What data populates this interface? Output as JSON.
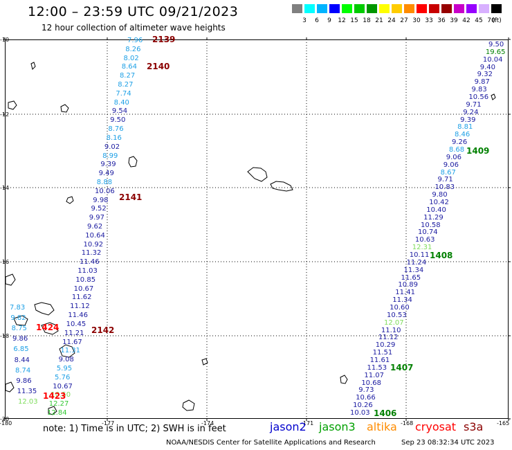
{
  "title": "12:00 – 23:59 UTC 09/21/2023",
  "subtitle": "12 hour collection of altimeter wave heights",
  "colorbar": {
    "unit_label": "(ft)",
    "labels": [
      "3",
      "6",
      "9",
      "12",
      "15",
      "18",
      "21",
      "24",
      "27",
      "30",
      "33",
      "36",
      "39",
      "42",
      "45",
      "70"
    ],
    "colors": [
      "#808080",
      "#00ffff",
      "#00b4ff",
      "#0000ff",
      "#00ff00",
      "#00cc00",
      "#009600",
      "#ffff00",
      "#ffcc00",
      "#ff8c00",
      "#ff0000",
      "#c80000",
      "#960000",
      "#c800c8",
      "#9600ff",
      "#d8b0ff",
      "#000000"
    ]
  },
  "axes": {
    "y_ticks": [
      "-10",
      "-12",
      "-14",
      "-16",
      "-18",
      "-20"
    ],
    "x_ticks": [
      "-180",
      "-177",
      "-174",
      "-171",
      "-168",
      "-165"
    ]
  },
  "passes": [
    {
      "label": "2139",
      "color": "#8b0000"
    },
    {
      "label": "2140",
      "color": "#8b0000"
    },
    {
      "label": "2141",
      "color": "#8b0000"
    },
    {
      "label": "2142",
      "color": "#8b0000"
    },
    {
      "label": "1409",
      "color": "#008000"
    },
    {
      "label": "1408",
      "color": "#008000"
    },
    {
      "label": "1407",
      "color": "#008000"
    },
    {
      "label": "1406",
      "color": "#008000"
    },
    {
      "label": "1424",
      "color": "#ff0000"
    },
    {
      "label": "1423",
      "color": "#ff0000"
    }
  ],
  "track_west": [
    {
      "v": "7.96",
      "c": "#1ea0e6"
    },
    {
      "v": "8.26",
      "c": "#1ea0e6"
    },
    {
      "v": "8.02",
      "c": "#1ea0e6"
    },
    {
      "v": "8.64",
      "c": "#1ea0e6"
    },
    {
      "v": "8.27",
      "c": "#1ea0e6"
    },
    {
      "v": "8.27",
      "c": "#1ea0e6"
    },
    {
      "v": "7.74",
      "c": "#1ea0e6"
    },
    {
      "v": "8.40",
      "c": "#1ea0e6"
    },
    {
      "v": "9.54",
      "c": "#1a1aa0"
    },
    {
      "v": "9.50",
      "c": "#1a1aa0"
    },
    {
      "v": "8.76",
      "c": "#1ea0e6"
    },
    {
      "v": "8.16",
      "c": "#1ea0e6"
    },
    {
      "v": "9.02",
      "c": "#1a1aa0"
    },
    {
      "v": "8.99",
      "c": "#1ea0e6"
    },
    {
      "v": "9.39",
      "c": "#1a1aa0"
    },
    {
      "v": "9.49",
      "c": "#1a1aa0"
    },
    {
      "v": "8.88",
      "c": "#1ea0e6"
    },
    {
      "v": "10.06",
      "c": "#1a1aa0"
    },
    {
      "v": "9.98",
      "c": "#1a1aa0"
    },
    {
      "v": "9.52",
      "c": "#1a1aa0"
    },
    {
      "v": "9.97",
      "c": "#1a1aa0"
    },
    {
      "v": "9.62",
      "c": "#1a1aa0"
    },
    {
      "v": "10.64",
      "c": "#1a1aa0"
    },
    {
      "v": "10.92",
      "c": "#1a1aa0"
    },
    {
      "v": "11.32",
      "c": "#1a1aa0"
    },
    {
      "v": "11.46",
      "c": "#1a1aa0"
    },
    {
      "v": "11.03",
      "c": "#1a1aa0"
    },
    {
      "v": "10.85",
      "c": "#1a1aa0"
    },
    {
      "v": "10.67",
      "c": "#1a1aa0"
    },
    {
      "v": "11.62",
      "c": "#1a1aa0"
    },
    {
      "v": "11.12",
      "c": "#1a1aa0"
    },
    {
      "v": "11.46",
      "c": "#1a1aa0"
    },
    {
      "v": "10.45",
      "c": "#1a1aa0"
    },
    {
      "v": "11.21",
      "c": "#1a1aa0"
    },
    {
      "v": "11.67",
      "c": "#1a1aa0"
    },
    {
      "v": "11.31",
      "c": "#1ea0e6"
    },
    {
      "v": "9.08",
      "c": "#1a1aa0"
    },
    {
      "v": "5.95",
      "c": "#1ea0e6"
    },
    {
      "v": "5.76",
      "c": "#1ea0e6"
    },
    {
      "v": "10.67",
      "c": "#1a1aa0"
    },
    {
      "v": "10.50",
      "c": "#7ddc5a"
    },
    {
      "v": "12.27",
      "c": "#32c832"
    },
    {
      "v": "12.84",
      "c": "#32c832"
    }
  ],
  "track_far_west": [
    {
      "v": "7.83",
      "c": "#1ea0e6"
    },
    {
      "v": "9.82",
      "c": "#1ea0e6"
    },
    {
      "v": "8.75",
      "c": "#1ea0e6"
    },
    {
      "v": "9.86",
      "c": "#1a1aa0"
    },
    {
      "v": "6.85",
      "c": "#1ea0e6"
    },
    {
      "v": "8.44",
      "c": "#1a1aa0"
    },
    {
      "v": "8.74",
      "c": "#1ea0e6"
    },
    {
      "v": "9.86",
      "c": "#1a1aa0"
    },
    {
      "v": "11.35",
      "c": "#1a1aa0"
    },
    {
      "v": "12.03",
      "c": "#7ddc5a"
    }
  ],
  "track_east": [
    {
      "v": "9.50",
      "c": "#1a1aa0"
    },
    {
      "v": "19.65",
      "c": "#008000"
    },
    {
      "v": "10.04",
      "c": "#1a1aa0"
    },
    {
      "v": "9.40",
      "c": "#1a1aa0"
    },
    {
      "v": "9.32",
      "c": "#1a1aa0"
    },
    {
      "v": "9.87",
      "c": "#1a1aa0"
    },
    {
      "v": "9.83",
      "c": "#1a1aa0"
    },
    {
      "v": "10.56",
      "c": "#1a1aa0"
    },
    {
      "v": "9.71",
      "c": "#1a1aa0"
    },
    {
      "v": "9.24",
      "c": "#1a1aa0"
    },
    {
      "v": "9.39",
      "c": "#1a1aa0"
    },
    {
      "v": "8.81",
      "c": "#1ea0e6"
    },
    {
      "v": "8.46",
      "c": "#1ea0e6"
    },
    {
      "v": "9.26",
      "c": "#1a1aa0"
    },
    {
      "v": "8.68",
      "c": "#1ea0e6"
    },
    {
      "v": "9.06",
      "c": "#1a1aa0"
    },
    {
      "v": "9.06",
      "c": "#1a1aa0"
    },
    {
      "v": "8.67",
      "c": "#1ea0e6"
    },
    {
      "v": "9.71",
      "c": "#1a1aa0"
    },
    {
      "v": "10.83",
      "c": "#1a1aa0"
    },
    {
      "v": "9.80",
      "c": "#1a1aa0"
    },
    {
      "v": "10.42",
      "c": "#1a1aa0"
    },
    {
      "v": "10.40",
      "c": "#1a1aa0"
    },
    {
      "v": "11.29",
      "c": "#1a1aa0"
    },
    {
      "v": "10.58",
      "c": "#1a1aa0"
    },
    {
      "v": "10.74",
      "c": "#1a1aa0"
    },
    {
      "v": "10.63",
      "c": "#1a1aa0"
    },
    {
      "v": "12.31",
      "c": "#7ddc5a"
    },
    {
      "v": "10.11",
      "c": "#1a1aa0"
    },
    {
      "v": "11.24",
      "c": "#1a1aa0"
    },
    {
      "v": "11.34",
      "c": "#1a1aa0"
    },
    {
      "v": "11.65",
      "c": "#1a1aa0"
    },
    {
      "v": "10.89",
      "c": "#1a1aa0"
    },
    {
      "v": "11.41",
      "c": "#1a1aa0"
    },
    {
      "v": "11.34",
      "c": "#1a1aa0"
    },
    {
      "v": "10.60",
      "c": "#1a1aa0"
    },
    {
      "v": "10.53",
      "c": "#1a1aa0"
    },
    {
      "v": "12.07",
      "c": "#7ddc5a"
    },
    {
      "v": "11.10",
      "c": "#1a1aa0"
    },
    {
      "v": "11.12",
      "c": "#1a1aa0"
    },
    {
      "v": "10.29",
      "c": "#1a1aa0"
    },
    {
      "v": "11.51",
      "c": "#1a1aa0"
    },
    {
      "v": "11.61",
      "c": "#1a1aa0"
    },
    {
      "v": "11.53",
      "c": "#1a1aa0"
    },
    {
      "v": "11.07",
      "c": "#1a1aa0"
    },
    {
      "v": "10.68",
      "c": "#1a1aa0"
    },
    {
      "v": "9.73",
      "c": "#1a1aa0"
    },
    {
      "v": "10.66",
      "c": "#1a1aa0"
    },
    {
      "v": "10.26",
      "c": "#1a1aa0"
    },
    {
      "v": "10.03",
      "c": "#1a1aa0"
    }
  ],
  "footer": {
    "note": "note:  1) Time is in UTC; 2) SWH is in feet",
    "legend": [
      {
        "label": "jason2",
        "color": "#0000cd"
      },
      {
        "label": "jason3",
        "color": "#00a000"
      },
      {
        "label": "altika",
        "color": "#ff8c00"
      },
      {
        "label": "cryosat",
        "color": "#ff0000"
      },
      {
        "label": "s3a",
        "color": "#8b0000"
      }
    ],
    "credit": "NOAA/NESDIS Center for Satellite Applications and Research",
    "timestamp": "Sep 23 08:32:34 UTC 2023"
  }
}
